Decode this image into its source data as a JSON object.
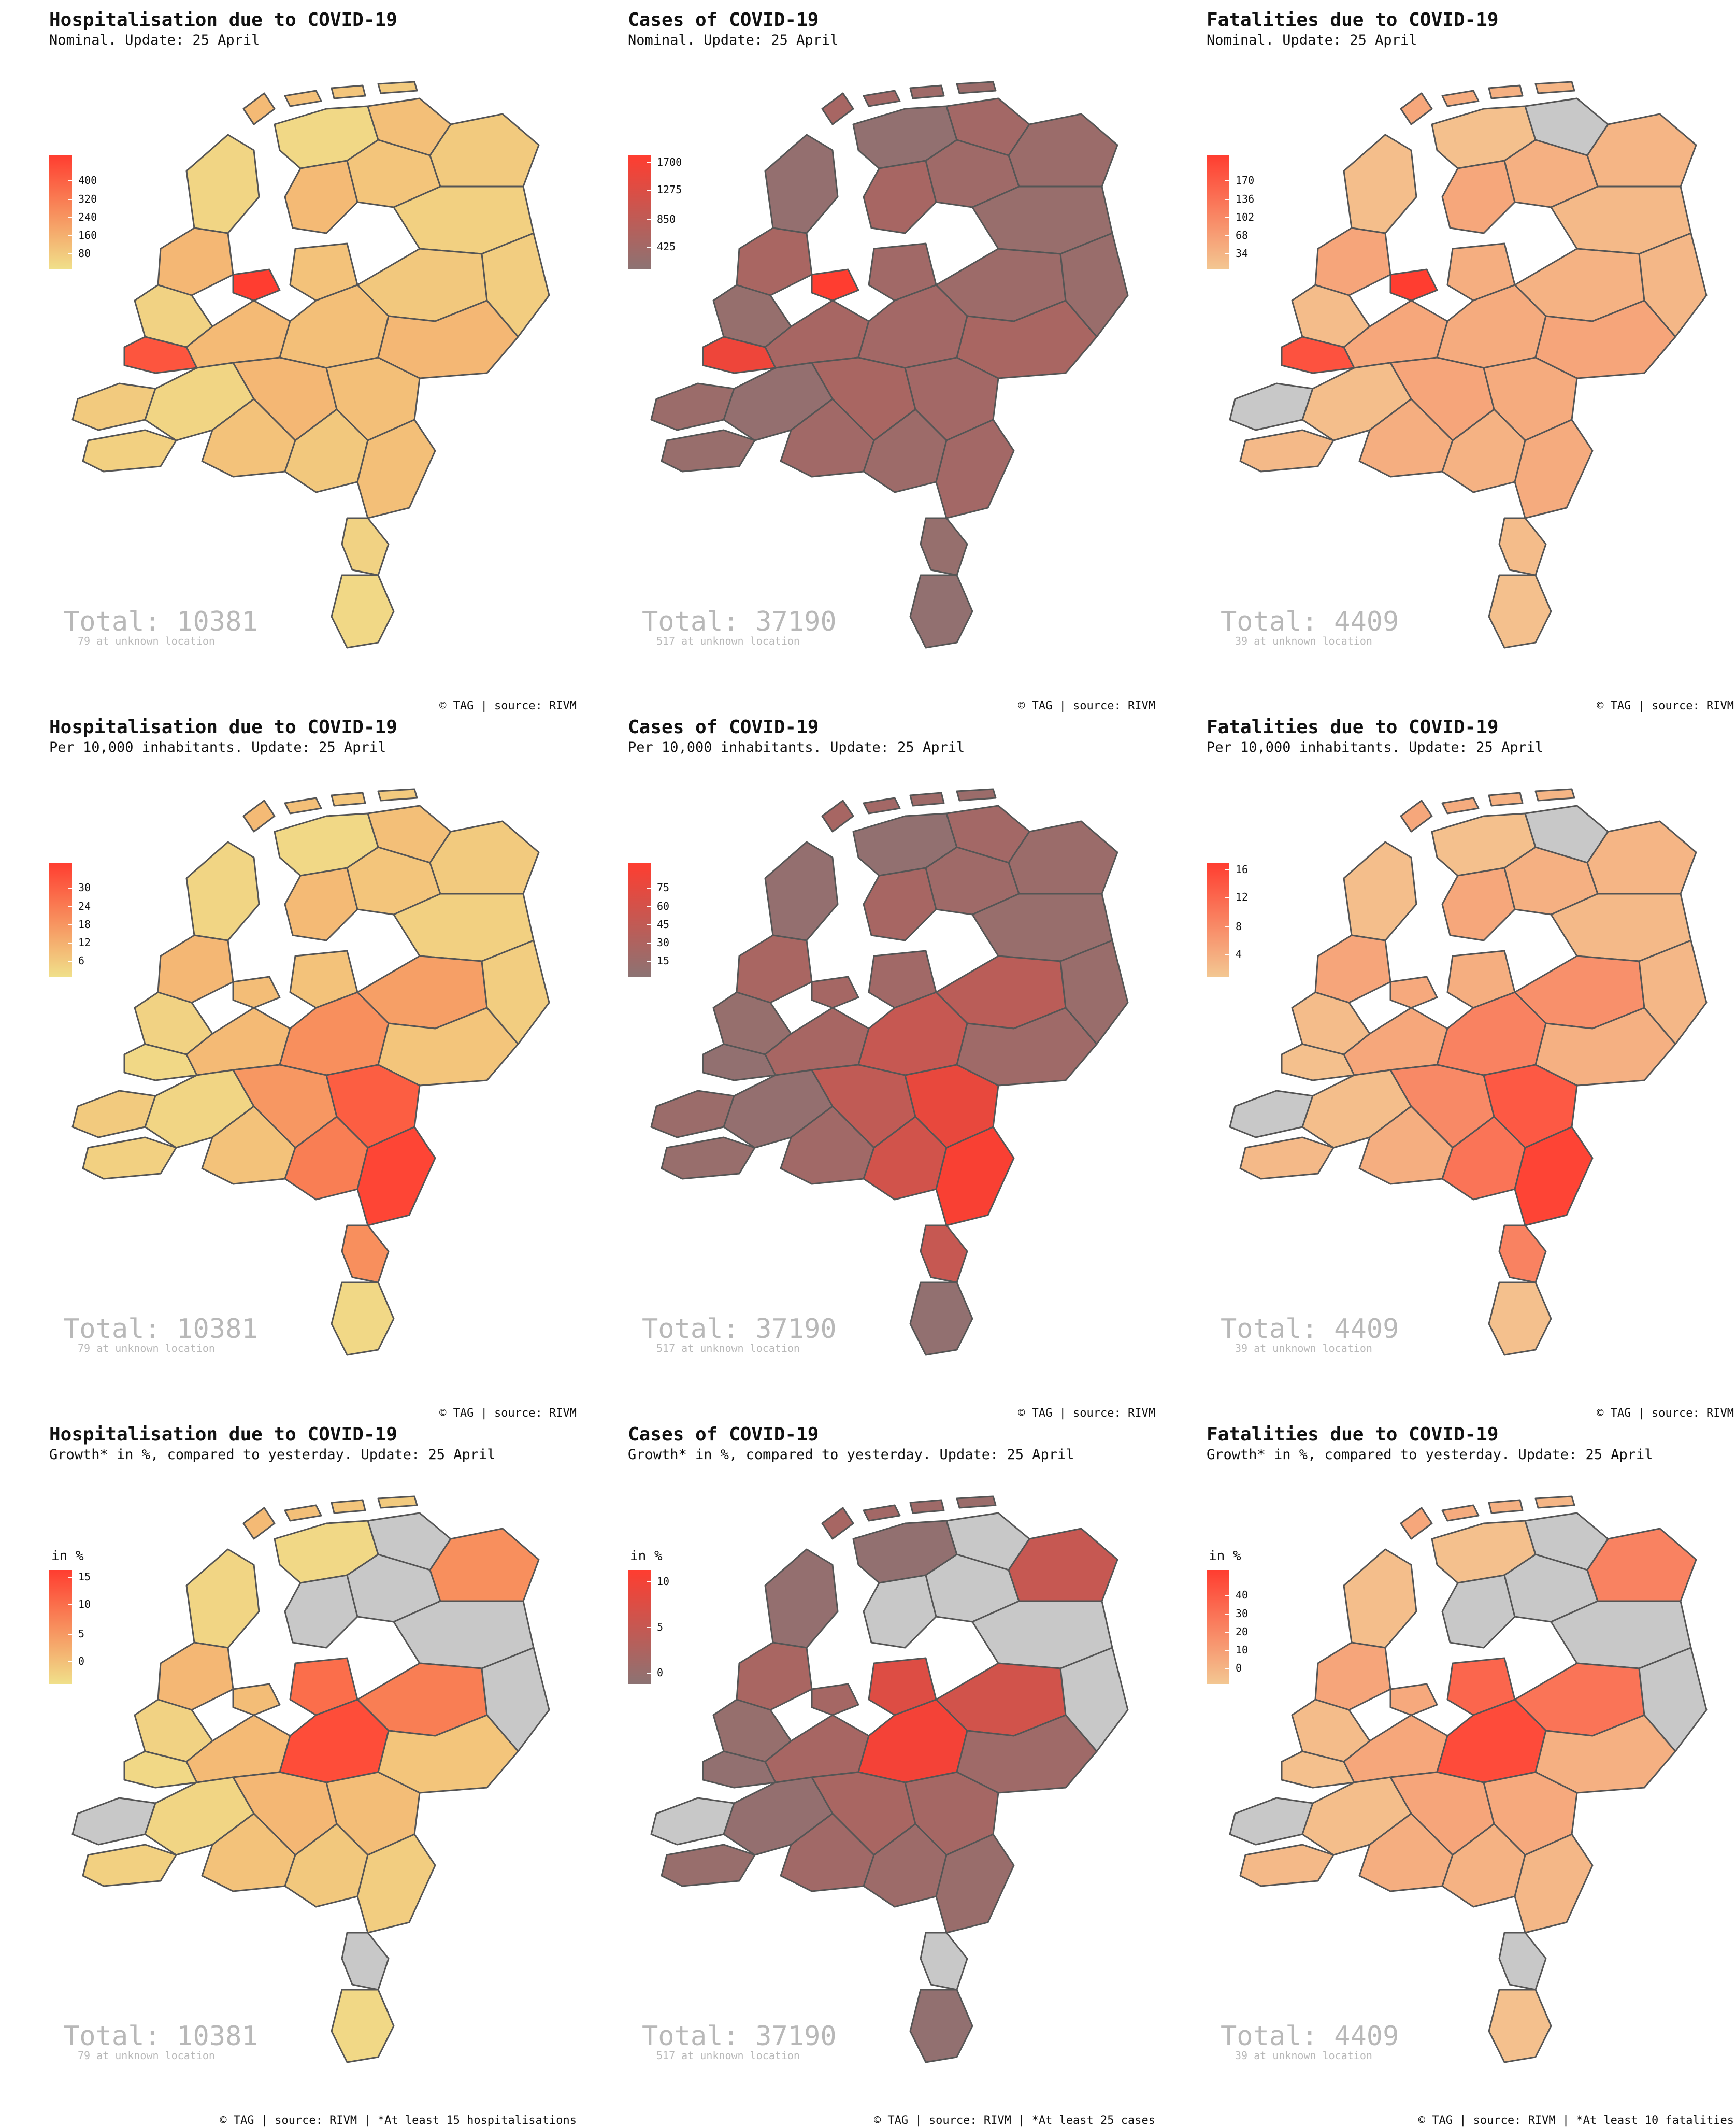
{
  "colors": {
    "hosp": [
      "#f0e08a",
      "#ff3d30"
    ],
    "cases": [
      "#8c7373",
      "#ff3d30"
    ],
    "fatal": [
      "#f3c792",
      "#ff3d30"
    ],
    "missing": "#c8c8c8",
    "border": "#555555",
    "total_text": "#b8b8b8"
  },
  "panels": [
    {
      "id": "hosp-nominal",
      "title": "Hospitalisation due to COVID-19",
      "subtitle": "Nominal. Update: 25 April",
      "legend_title": "",
      "ticks": [
        "400",
        "320",
        "240",
        "160",
        "80"
      ],
      "total": "Total: 10381",
      "unknown": "79 at unknown location",
      "source": "© TAG | source: RIVM",
      "scheme": "hosp",
      "mode": "nominal"
    },
    {
      "id": "cases-nominal",
      "title": "Cases of COVID-19",
      "subtitle": "Nominal. Update: 25 April",
      "legend_title": "",
      "ticks": [
        "1700",
        "1275",
        "850",
        "425"
      ],
      "total": "Total: 37190",
      "unknown": "517 at unknown location",
      "source": "© TAG | source: RIVM",
      "scheme": "cases",
      "mode": "nominal"
    },
    {
      "id": "fatal-nominal",
      "title": "Fatalities due to COVID-19",
      "subtitle": "Nominal. Update: 25 April",
      "legend_title": "",
      "ticks": [
        "170",
        "136",
        "102",
        "68",
        "34"
      ],
      "total": "Total: 4409",
      "unknown": "39 at unknown location",
      "source": "© TAG | source: RIVM",
      "scheme": "fatal",
      "mode": "nominal"
    },
    {
      "id": "hosp-per10k",
      "title": "Hospitalisation due to COVID-19",
      "subtitle": "Per 10,000 inhabitants. Update: 25 April",
      "legend_title": "",
      "ticks": [
        "30",
        "24",
        "18",
        "12",
        "6"
      ],
      "total": "Total: 10381",
      "unknown": "79 at unknown location",
      "source": "© TAG | source: RIVM",
      "scheme": "hosp",
      "mode": "per10k"
    },
    {
      "id": "cases-per10k",
      "title": "Cases of COVID-19",
      "subtitle": "Per 10,000 inhabitants. Update: 25 April",
      "legend_title": "",
      "ticks": [
        "75",
        "60",
        "45",
        "30",
        "15"
      ],
      "total": "Total: 37190",
      "unknown": "517 at unknown location",
      "source": "© TAG | source: RIVM",
      "scheme": "cases",
      "mode": "per10k"
    },
    {
      "id": "fatal-per10k",
      "title": "Fatalities due to COVID-19",
      "subtitle": "Per 10,000 inhabitants. Update: 25 April",
      "legend_title": "",
      "ticks": [
        "16",
        "12",
        "8",
        "4"
      ],
      "total": "Total: 4409",
      "unknown": "39 at unknown location",
      "source": "© TAG | source: RIVM",
      "scheme": "fatal",
      "mode": "per10k"
    },
    {
      "id": "hosp-growth",
      "title": "Hospitalisation due to COVID-19",
      "subtitle": "Growth* in %, compared to yesterday. Update: 25 April",
      "legend_title": "in %",
      "ticks": [
        "15",
        "10",
        "5",
        "0"
      ],
      "total": "Total: 10381",
      "unknown": "79 at unknown location",
      "source": "© TAG | source: RIVM | *At least 15 hospitalisations",
      "scheme": "hosp",
      "mode": "growth"
    },
    {
      "id": "cases-growth",
      "title": "Cases of COVID-19",
      "subtitle": "Growth* in %, compared to yesterday. Update: 25 April",
      "legend_title": "in %",
      "ticks": [
        "10",
        "5",
        "0"
      ],
      "total": "Total: 37190",
      "unknown": "517 at unknown location",
      "source": "© TAG | source: RIVM | *At least 25 cases",
      "scheme": "cases",
      "mode": "growth"
    },
    {
      "id": "fatal-growth",
      "title": "Fatalities due to COVID-19",
      "subtitle": "Growth* in %, compared to yesterday. Update: 25 April",
      "legend_title": "in %",
      "ticks": [
        "40",
        "30",
        "20",
        "10",
        "0"
      ],
      "total": "Total: 4409",
      "unknown": "39 at unknown location",
      "source": "© TAG | source: RIVM | *At least 10 fatalities",
      "scheme": "fatal",
      "mode": "growth"
    }
  ]
}
